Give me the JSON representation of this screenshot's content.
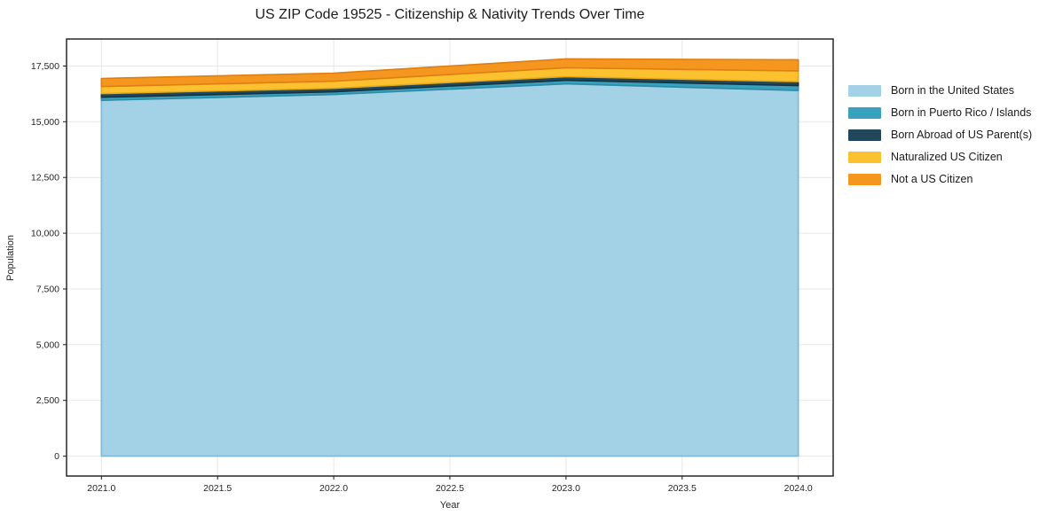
{
  "title": "US ZIP Code 19525 - Citizenship & Nativity Trends Over Time",
  "axes": {
    "x_label": "Year",
    "y_label": "Population",
    "x_tick_labels": [
      "2021.0",
      "2021.5",
      "2022.0",
      "2022.5",
      "2023.0",
      "2023.5",
      "2024.0"
    ],
    "y_tick_labels": [
      "0",
      "2,500",
      "5,000",
      "7,500",
      "10,000",
      "12,500",
      "15,000",
      "17,500"
    ]
  },
  "chart_data": {
    "type": "area",
    "stacked": true,
    "title": "US ZIP Code 19525 - Citizenship & Nativity Trends Over Time",
    "xlabel": "Year",
    "ylabel": "Population",
    "x": [
      2021,
      2022,
      2023,
      2024
    ],
    "series": [
      {
        "name": "Born in the United States",
        "color": "#a3d1e6",
        "edge_color": "#7fb8d4",
        "values": [
          15960,
          16220,
          16700,
          16400
        ]
      },
      {
        "name": "Born in Puerto Rico / Islands",
        "color": "#38a1be",
        "edge_color": "#2e8ba5",
        "values": [
          140,
          120,
          160,
          220
        ]
      },
      {
        "name": "Born Abroad of US Parent(s)",
        "color": "#22475a",
        "edge_color": "#16313f",
        "values": [
          160,
          160,
          160,
          180
        ]
      },
      {
        "name": "Naturalized US Citizen",
        "color": "#fcc12e",
        "edge_color": "#e5a91c",
        "values": [
          320,
          320,
          400,
          480
        ]
      },
      {
        "name": "Not a US Citizen",
        "color": "#f5961f",
        "edge_color": "#de7e14",
        "values": [
          360,
          360,
          400,
          500
        ]
      }
    ],
    "stack_totals": [
      16940,
      17180,
      17820,
      17780
    ],
    "x_tick_values": [
      2021,
      2021.5,
      2022,
      2022.5,
      2023,
      2023.5,
      2024
    ],
    "y_tick_values": [
      0,
      2500,
      5000,
      7500,
      10000,
      12500,
      15000,
      17500
    ],
    "xlim": [
      2020.85,
      2024.15
    ],
    "ylim": [
      -891,
      18711
    ],
    "grid": true,
    "grid_color": "#e7e7e7",
    "frame_color": "#1a1a1a",
    "tick_text_color": "#262626",
    "background_color": "#ffffff",
    "legend_position": "outside right"
  }
}
